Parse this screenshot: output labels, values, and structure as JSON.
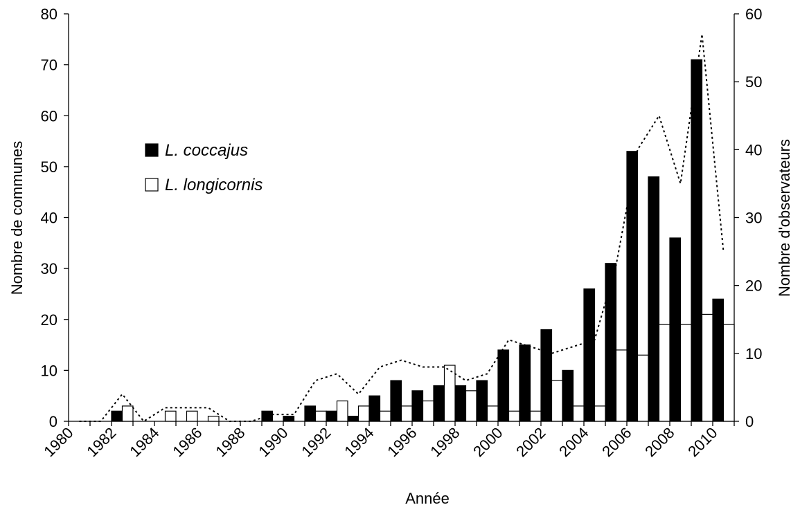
{
  "chart_data": {
    "type": "bar",
    "xlabel": "Année",
    "ylabel": "Nombre de communes",
    "y2label": "Nombre d'observateurs",
    "categories": [
      "1980",
      null,
      "1982",
      null,
      "1984",
      null,
      "1986",
      null,
      "1988",
      null,
      "1990",
      null,
      "1992",
      null,
      "1994",
      null,
      "1996",
      null,
      "1998",
      null,
      "2000",
      null,
      "2002",
      null,
      "2004",
      null,
      "2006",
      null,
      "2008",
      null,
      "2010"
    ],
    "series": [
      {
        "name": "L. coccajus",
        "color": "#000000",
        "values": [
          0,
          0,
          2,
          0,
          0,
          0,
          0,
          0,
          0,
          2,
          1,
          3,
          2,
          1,
          5,
          8,
          6,
          7,
          7,
          8,
          14,
          15,
          18,
          10,
          26,
          31,
          53,
          48,
          36,
          71,
          24
        ]
      },
      {
        "name": "L. longicornis",
        "color": "#ffffff",
        "values": [
          0,
          0,
          3,
          0,
          2,
          2,
          1,
          0,
          0,
          0,
          0,
          2,
          4,
          3,
          2,
          3,
          4,
          11,
          6,
          3,
          2,
          2,
          8,
          3,
          3,
          14,
          13,
          19,
          19,
          21,
          19
        ]
      },
      {
        "type": "line",
        "axis": "y2",
        "color": "#000000",
        "dashed": true,
        "values": [
          0,
          0,
          4,
          0,
          2,
          2,
          2,
          0,
          0,
          1,
          1,
          6,
          7,
          4,
          8,
          9,
          8,
          8,
          6,
          7,
          12,
          11,
          10,
          11,
          12,
          23,
          40,
          45,
          35,
          57,
          25
        ]
      }
    ],
    "ylim": [
      0,
      80
    ],
    "yticks": [
      0,
      10,
      20,
      30,
      40,
      50,
      60,
      70,
      80
    ],
    "y2lim": [
      0,
      60
    ],
    "y2ticks": [
      0,
      10,
      20,
      30,
      40,
      50,
      60
    ],
    "legend": "upper left"
  }
}
